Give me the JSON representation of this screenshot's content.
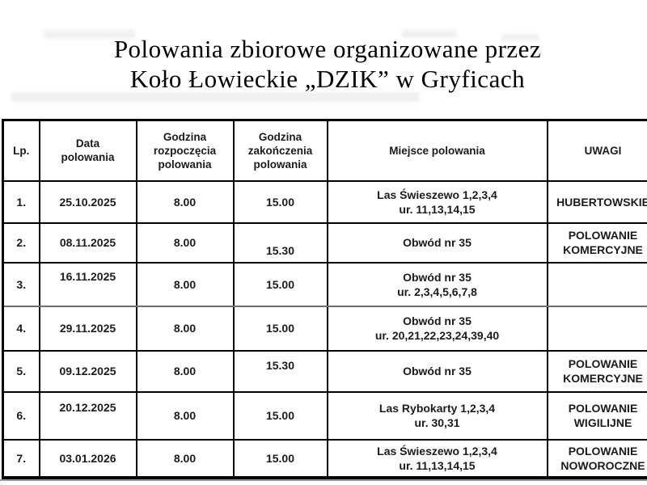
{
  "title": {
    "line1": "Polowania zbiorowe organizowane przez",
    "line2": "Koło Łowieckie „DZIK” w Gryficach"
  },
  "table": {
    "headers": [
      "Lp.",
      "Data\npolowania",
      "Godzina\nrozpoczęcia\npolowania",
      "Godzina\nzakończenia\npolowania",
      "Miejsce polowania",
      "UWAGI"
    ],
    "rows": [
      {
        "lp": "1.",
        "date": "25.10.2025",
        "start": "8.00",
        "end": "15.00",
        "place": "Las Świeszewo  1,2,3,4\nur. 11,13,14,15",
        "remarks": "HUBERTOWSKIE"
      },
      {
        "lp": "2.",
        "date": "08.11.2025",
        "start": "8.00",
        "end": "15.30",
        "place": "Obwód nr 35",
        "remarks": "POLOWANIE\nKOMERCYJNE"
      },
      {
        "lp": "3.",
        "date": "16.11.2025",
        "start": "8.00",
        "end": "15.00",
        "place": "Obwód nr 35\nur. 2,3,4,5,6,7,8",
        "remarks": ""
      },
      {
        "lp": "4.",
        "date": "29.11.2025",
        "start": "8.00",
        "end": "15.00",
        "place": "Obwód nr 35\nur. 20,21,22,23,24,39,40",
        "remarks": ""
      },
      {
        "lp": "5.",
        "date": "09.12.2025",
        "start": "8.00",
        "end": "15.30",
        "place": "Obwód nr 35",
        "remarks": "POLOWANIE\nKOMERCYJNE"
      },
      {
        "lp": "6.",
        "date": "20.12.2025",
        "start": "8.00",
        "end": "15.00",
        "place": "Las Rybokarty 1,2,3,4\nur. 30,31",
        "remarks": "POLOWANIE\nWIGILIJNE"
      },
      {
        "lp": "7.",
        "date": "03.01.2026",
        "start": "8.00",
        "end": "15.00",
        "place": "Las Świeszewo 1,2,3,4\nur. 11,13,14,15",
        "remarks": "POLOWANIE\nNOWOROCZNE"
      }
    ]
  },
  "colors": {
    "border": "#000000",
    "text": "#1b1b1b",
    "light_separator": "#6f6f6f",
    "bottom_rule": "#9b9b9b",
    "background": "#ffffff"
  }
}
